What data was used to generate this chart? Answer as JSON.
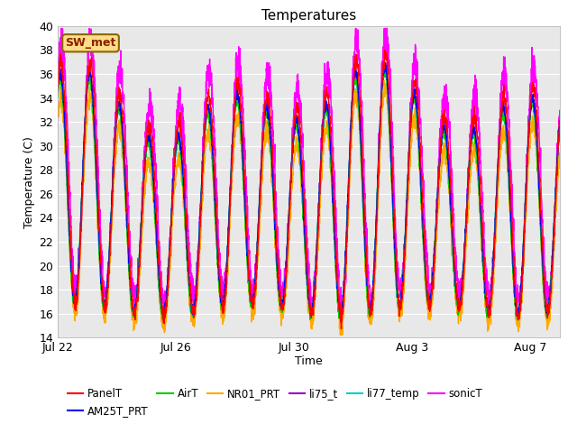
{
  "title": "Temperatures",
  "xlabel": "Time",
  "ylabel": "Temperature (C)",
  "ylim": [
    14,
    40
  ],
  "series": {
    "PanelT": {
      "color": "#ff0000",
      "lw": 1.0
    },
    "AM25T_PRT": {
      "color": "#0000ff",
      "lw": 1.0
    },
    "AirT": {
      "color": "#00cc00",
      "lw": 1.0
    },
    "NR01_PRT": {
      "color": "#ffaa00",
      "lw": 1.0
    },
    "li75_t": {
      "color": "#9900cc",
      "lw": 1.0
    },
    "li77_temp": {
      "color": "#00cccc",
      "lw": 1.2
    },
    "sonicT": {
      "color": "#ff00ff",
      "lw": 1.0
    }
  },
  "legend_label_box": "SW_met",
  "legend_box_bg": "#ffdd88",
  "legend_box_border": "#886600",
  "figure_bg": "#ffffff",
  "plot_bg_color": "#e8e8e8",
  "grid_color": "#ffffff",
  "tick_positions": [
    0,
    4,
    8,
    12,
    16
  ],
  "tick_labels": [
    "Jul 22",
    "Jul 26",
    "Jul 30",
    "Aug 3",
    "Aug 7"
  ],
  "yticks": [
    14,
    16,
    18,
    20,
    22,
    24,
    26,
    28,
    30,
    32,
    34,
    36,
    38,
    40
  ],
  "num_points": 3000,
  "xlim": [
    0,
    17
  ]
}
